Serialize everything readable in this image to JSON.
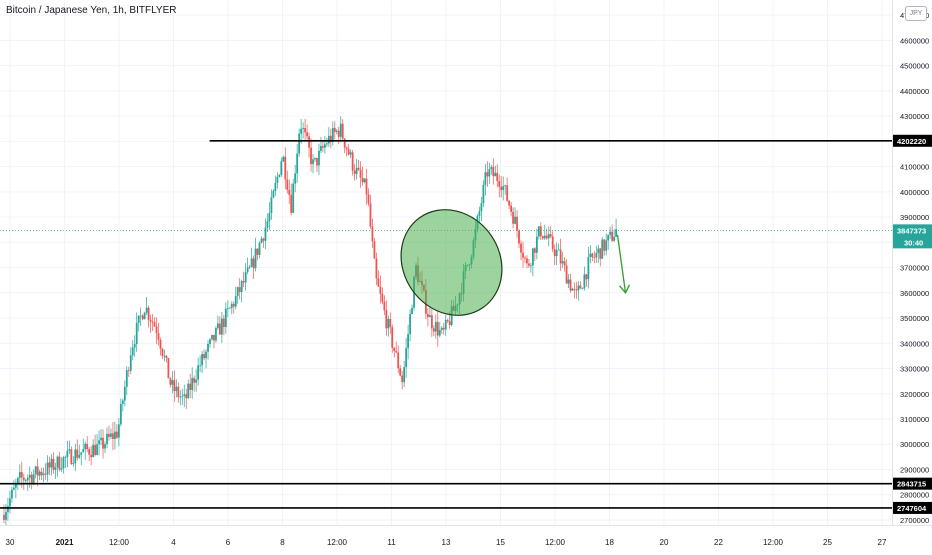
{
  "header": {
    "title": "Bitcoin / Japanese Yen, 1h, BITFLYER",
    "currency": "JPY"
  },
  "colors": {
    "up": "#26a69a",
    "down": "#ef5350",
    "line": "#000000",
    "ellipse_fill": "#4caf50",
    "ellipse_stroke": "#1b3d12",
    "arrow": "#2e9e2e",
    "tag_price": "#26a69a",
    "grid": "#f0f3fa",
    "axis_text": "#131722"
  },
  "chart_data": {
    "type": "candlestick",
    "ylim": [
      2680000,
      4760000
    ],
    "yticks": [
      2700000,
      2800000,
      2900000,
      3000000,
      3100000,
      3200000,
      3300000,
      3400000,
      3500000,
      3600000,
      3700000,
      3800000,
      3900000,
      4000000,
      4100000,
      4200000,
      4300000,
      4400000,
      4500000,
      4600000,
      4700000
    ],
    "xticks": [
      {
        "label": "30",
        "bold": false
      },
      {
        "label": "2021",
        "bold": true
      },
      {
        "label": "12:00",
        "bold": false
      },
      {
        "label": "4",
        "bold": false
      },
      {
        "label": "6",
        "bold": false
      },
      {
        "label": "8",
        "bold": false
      },
      {
        "label": "12:00",
        "bold": false
      },
      {
        "label": "11",
        "bold": false
      },
      {
        "label": "13",
        "bold": false
      },
      {
        "label": "15",
        "bold": false
      },
      {
        "label": "12:00",
        "bold": false
      },
      {
        "label": "18",
        "bold": false
      },
      {
        "label": "20",
        "bold": false
      },
      {
        "label": "22",
        "bold": false
      },
      {
        "label": "12:00",
        "bold": false
      },
      {
        "label": "25",
        "bold": false
      },
      {
        "label": "27",
        "bold": false
      }
    ],
    "price_path": [
      {
        "t": 0,
        "p": 2720000
      },
      {
        "t": 0.02,
        "p": 2860000
      },
      {
        "t": 0.05,
        "p": 2900000
      },
      {
        "t": 0.08,
        "p": 2960000
      },
      {
        "t": 0.11,
        "p": 2990000
      },
      {
        "t": 0.13,
        "p": 3050000
      },
      {
        "t": 0.145,
        "p": 3380000
      },
      {
        "t": 0.16,
        "p": 3550000
      },
      {
        "t": 0.175,
        "p": 3450000
      },
      {
        "t": 0.19,
        "p": 3230000
      },
      {
        "t": 0.205,
        "p": 3170000
      },
      {
        "t": 0.22,
        "p": 3300000
      },
      {
        "t": 0.24,
        "p": 3430000
      },
      {
        "t": 0.26,
        "p": 3560000
      },
      {
        "t": 0.28,
        "p": 3700000
      },
      {
        "t": 0.3,
        "p": 3900000
      },
      {
        "t": 0.315,
        "p": 4150000
      },
      {
        "t": 0.325,
        "p": 3950000
      },
      {
        "t": 0.335,
        "p": 4280000
      },
      {
        "t": 0.35,
        "p": 4100000
      },
      {
        "t": 0.365,
        "p": 4200000
      },
      {
        "t": 0.38,
        "p": 4250000
      },
      {
        "t": 0.395,
        "p": 4100000
      },
      {
        "t": 0.41,
        "p": 4000000
      },
      {
        "t": 0.42,
        "p": 3650000
      },
      {
        "t": 0.435,
        "p": 3450000
      },
      {
        "t": 0.45,
        "p": 3250000
      },
      {
        "t": 0.465,
        "p": 3700000
      },
      {
        "t": 0.48,
        "p": 3500000
      },
      {
        "t": 0.495,
        "p": 3430000
      },
      {
        "t": 0.51,
        "p": 3550000
      },
      {
        "t": 0.53,
        "p": 3800000
      },
      {
        "t": 0.545,
        "p": 4080000
      },
      {
        "t": 0.56,
        "p": 4050000
      },
      {
        "t": 0.575,
        "p": 3900000
      },
      {
        "t": 0.59,
        "p": 3700000
      },
      {
        "t": 0.605,
        "p": 3850000
      },
      {
        "t": 0.625,
        "p": 3750000
      },
      {
        "t": 0.645,
        "p": 3580000
      },
      {
        "t": 0.66,
        "p": 3720000
      },
      {
        "t": 0.68,
        "p": 3800000
      },
      {
        "t": 0.69,
        "p": 3847373
      }
    ],
    "horizontal_lines": [
      {
        "price": 4202220,
        "label": "4202220",
        "start_frac": 0.235
      },
      {
        "price": 2843715,
        "label": "2843715",
        "start_frac": 0.0
      },
      {
        "price": 2747604,
        "label": "2747604",
        "start_frac": 0.0
      }
    ],
    "current_price": {
      "value": 3847373,
      "label": "3847373",
      "countdown": "30:40"
    },
    "drawing": {
      "ellipse_center_price": 3720000,
      "ellipse_center_t": 0.65,
      "arrow_from_price": 3830000,
      "arrow_to_price": 3600000
    }
  }
}
